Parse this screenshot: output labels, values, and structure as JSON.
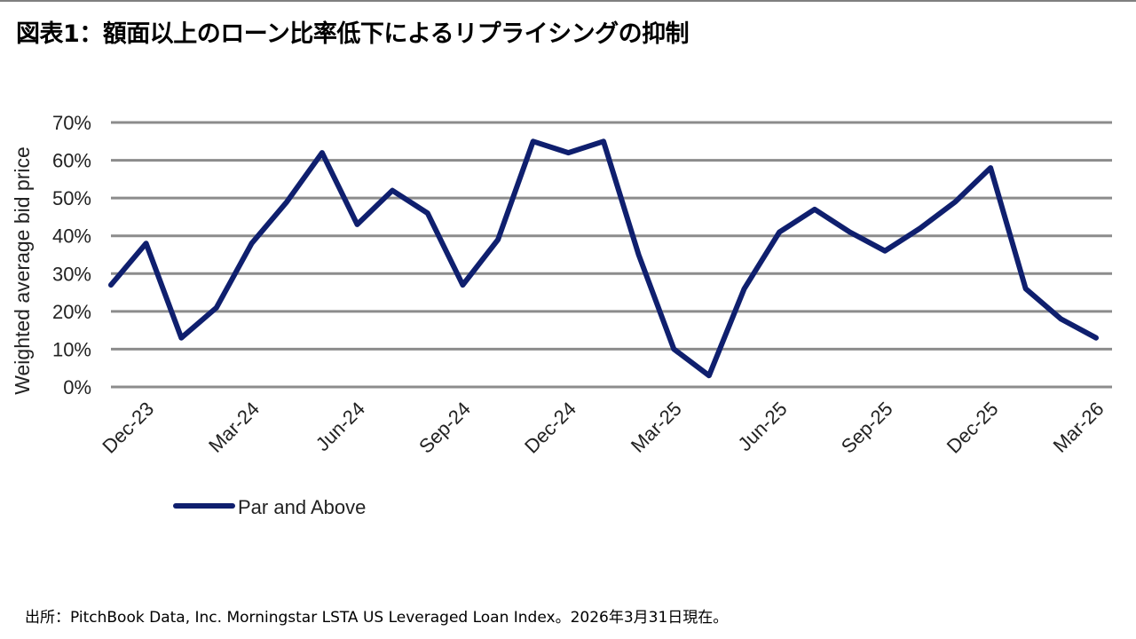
{
  "title": "図表1：額面以上のローン比率低下によるリプライシングの抑制",
  "source": "出所：PitchBook Data, Inc. Morningstar LSTA US Leveraged Loan Index。2026年3月31日現在。",
  "chart_data": {
    "type": "line",
    "ylabel": "Weighted average bid price",
    "ylim": [
      0,
      70
    ],
    "yticks": [
      "0%",
      "10%",
      "20%",
      "30%",
      "40%",
      "50%",
      "60%",
      "70%"
    ],
    "xticks": [
      "Dec-23",
      "Mar-24",
      "Jun-24",
      "Sep-24",
      "Dec-24",
      "Mar-25",
      "Jun-25",
      "Sep-25",
      "Dec-25",
      "Mar-26"
    ],
    "grid": true,
    "legend_position": "bottom-left",
    "line_color": "#0f1f6e",
    "grid_color": "#8c8c8c",
    "series": [
      {
        "name": "Par and Above",
        "values": [
          27,
          38,
          13,
          21,
          38,
          49,
          62,
          43,
          52,
          46,
          27,
          39,
          65,
          62,
          65,
          35,
          10,
          3,
          26,
          41,
          47,
          41,
          36,
          42,
          49,
          58,
          26,
          18,
          13
        ]
      }
    ]
  }
}
